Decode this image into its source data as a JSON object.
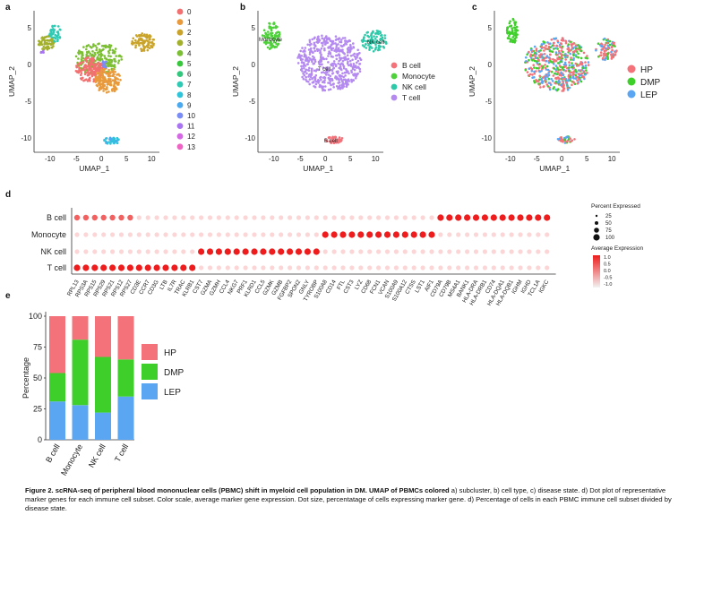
{
  "panels": {
    "a": "a",
    "b": "b",
    "c": "c",
    "d": "d",
    "e": "e"
  },
  "umap_a": {
    "xlabel": "UMAP_1",
    "ylabel": "UMAP_2",
    "xticks": [
      "-10",
      "-5",
      "0",
      "5",
      "10"
    ],
    "yticks": [
      "5",
      "0",
      "-5",
      "-10"
    ],
    "legend": [
      {
        "label": "0",
        "color": "#f27070"
      },
      {
        "label": "1",
        "color": "#e89a3c"
      },
      {
        "label": "2",
        "color": "#c9a32a"
      },
      {
        "label": "3",
        "color": "#a3b02c"
      },
      {
        "label": "4",
        "color": "#7cbf34"
      },
      {
        "label": "5",
        "color": "#38c63c"
      },
      {
        "label": "6",
        "color": "#33c77e"
      },
      {
        "label": "7",
        "color": "#2fcab3"
      },
      {
        "label": "8",
        "color": "#2ec4d9"
      },
      {
        "label": "9",
        "color": "#4aa9ef"
      },
      {
        "label": "10",
        "color": "#7a8cf5"
      },
      {
        "label": "11",
        "color": "#a974f2"
      },
      {
        "label": "12",
        "color": "#d568e4"
      },
      {
        "label": "13",
        "color": "#ef64c3"
      }
    ]
  },
  "umap_b": {
    "xlabel": "UMAP_1",
    "ylabel": "UMAP_2",
    "xticks": [
      "-10",
      "-5",
      "0",
      "5",
      "10"
    ],
    "yticks": [
      "5",
      "0",
      "-5",
      "-10"
    ],
    "labels": {
      "monocyte": "Monocyte",
      "nk": "NK cell",
      "t": "T cell",
      "b": "B cell"
    },
    "legend": [
      {
        "label": "B cell",
        "color": "#f4737a"
      },
      {
        "label": "Monocyte",
        "color": "#4ed13a"
      },
      {
        "label": "NK cell",
        "color": "#2ec9a9"
      },
      {
        "label": "T cell",
        "color": "#b48af0"
      }
    ]
  },
  "umap_c": {
    "xlabel": "UMAP_1",
    "ylabel": "UMAP_2",
    "xticks": [
      "-10",
      "-5",
      "0",
      "5",
      "10"
    ],
    "yticks": [
      "5",
      "0",
      "-5",
      "-10"
    ],
    "legend": [
      {
        "label": "HP",
        "color": "#f4737a"
      },
      {
        "label": "DMP",
        "color": "#3fcf2a"
      },
      {
        "label": "LEP",
        "color": "#5aa6f2"
      }
    ]
  },
  "dotplot": {
    "rows": [
      "B cell",
      "Monocyte",
      "NK cell",
      "T cell"
    ],
    "genes": [
      "RPL13",
      "RPS3A",
      "RPS15",
      "RPS29",
      "RPS21",
      "RPS12",
      "RPS27",
      "CD3E",
      "CCR7",
      "CD3G",
      "LTB",
      "IL7R",
      "TRAC",
      "KLRB1",
      "CST7",
      "GZMA",
      "GZMH",
      "CCL4",
      "NKG7",
      "PRF1",
      "KLRD1",
      "CCL5",
      "GZMK",
      "GZMB",
      "FGFBP2",
      "SPON2",
      "GNLY",
      "TYROBP",
      "S100A8",
      "CD14",
      "FTL",
      "CST3",
      "LYZ",
      "CD68",
      "FCN1",
      "VCAN",
      "S100A9",
      "S100A12",
      "CTSS",
      "LST1",
      "AIF1",
      "CD79A",
      "CD79B",
      "MS4A1",
      "BANK1",
      "HLA-DRA",
      "HLA-DRB1",
      "CD74",
      "HLA-DQA1",
      "HLA-DQB1",
      "IGHM",
      "IGHD",
      "TCL1A",
      "IGKC"
    ],
    "legend_title_pct": "Percent Expressed",
    "pct_levels": [
      "25",
      "50",
      "75",
      "100"
    ],
    "legend_title_avg": "Average Expression",
    "avg_levels": [
      "1.0",
      "0.5",
      "0.0",
      "-0.5",
      "-1.0"
    ],
    "low_color": "#f2f2f2",
    "high_color": "#ee1c1c"
  },
  "chart_data": {
    "type": "bar",
    "stacked": true,
    "categories": [
      "B cell",
      "Monocyte",
      "NK cell",
      "T cell"
    ],
    "series": [
      {
        "name": "LEP",
        "color": "#5aa6f2",
        "values": [
          31,
          28,
          22,
          35
        ]
      },
      {
        "name": "DMP",
        "color": "#3fcf2a",
        "values": [
          23,
          53,
          45,
          30
        ]
      },
      {
        "name": "HP",
        "color": "#f4737a",
        "values": [
          46,
          19,
          33,
          35
        ]
      }
    ],
    "ylabel": "Percentage",
    "yticks": [
      "0",
      "25",
      "50",
      "75",
      "100"
    ],
    "ylim": [
      0,
      100
    ],
    "legend": [
      "HP",
      "DMP",
      "LEP"
    ]
  },
  "caption": {
    "bold": "Figure 2. scRNA-seq of peripheral blood mononuclear cells (PBMC) shift in myeloid cell population in DM. UMAP of PBMCs colored",
    "rest": " a) subcluster, b) cell type, c) disease state. d) Dot plot of representative marker genes for each immune cell subset. Color scale, average marker gene expression. Dot size, percentatage of cells expressing marker gene. d) Percentage of cells in each PBMC immune cell subset divided by disease state."
  }
}
